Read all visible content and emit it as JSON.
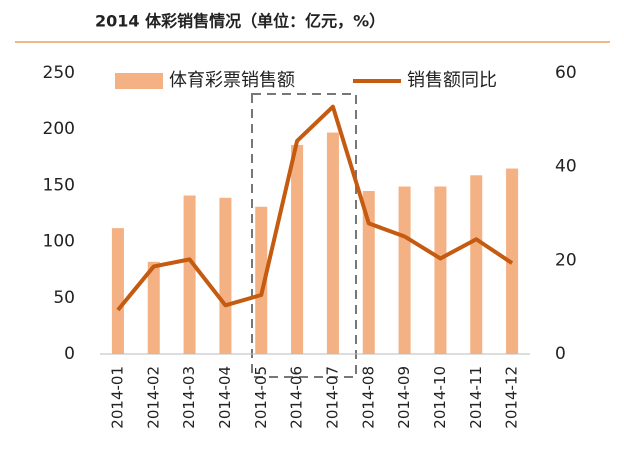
{
  "chart_data": {
    "type": "bar_line",
    "title": "2014 体彩销售情况（单位：亿元，%）",
    "categories": [
      "2014-01",
      "2014-02",
      "2014-03",
      "2014-04",
      "2014-05",
      "2014-06",
      "2014-07",
      "2014-08",
      "2014-09",
      "2014-10",
      "2014-11",
      "2014-12"
    ],
    "series": [
      {
        "name": "体育彩票销售额",
        "type": "bar",
        "color": "#f4b183",
        "values": [
          112,
          82,
          141,
          139,
          131,
          186,
          197,
          145,
          149,
          149,
          159,
          165
        ]
      },
      {
        "name": "销售额同比",
        "type": "line",
        "axis": "y2",
        "color": "#c55a11",
        "values": [
          9.4,
          18.7,
          20.2,
          10.4,
          12.6,
          45.5,
          52.8,
          27.9,
          25.1,
          20.4,
          24.5,
          19.4
        ]
      }
    ],
    "ylim": [
      0,
      250
    ],
    "yticks": [
      0,
      50,
      100,
      150,
      200,
      250
    ],
    "y2lim": [
      0,
      60
    ],
    "y2ticks": [
      0,
      20,
      40,
      60
    ],
    "legend": "top"
  }
}
